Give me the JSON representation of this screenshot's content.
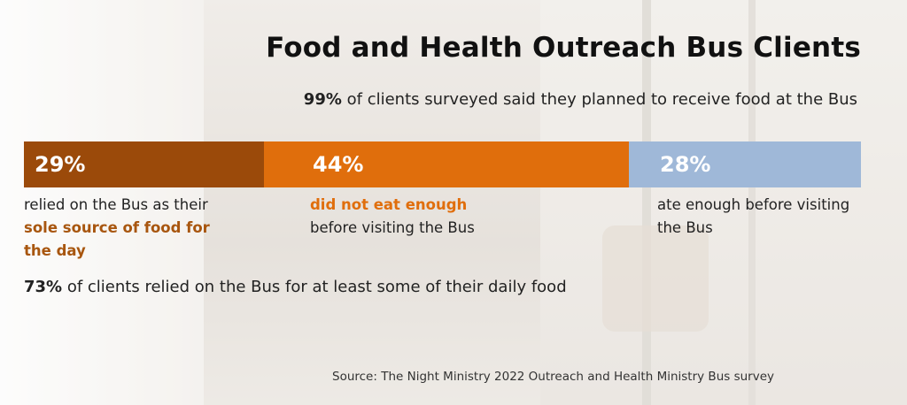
{
  "title": "Food and Health Outreach Bus Clients",
  "subtitle": {
    "value": "99%",
    "text": "of clients surveyed said they planned to receive food at the Bus"
  },
  "chart_data": {
    "type": "bar",
    "orientation": "horizontal-stacked",
    "categories": [
      "relied on the Bus as their sole source of food for the day",
      "did not eat enough before visiting the Bus",
      "ate enough before visiting the Bus"
    ],
    "values": [
      29,
      44,
      28
    ],
    "labels": [
      "29%",
      "44%",
      "28%"
    ],
    "colors": [
      "#9b4a0a",
      "#e06e0c",
      "#9fb8d8"
    ]
  },
  "segments": [
    {
      "label": "29%",
      "desc_plain": "relied on the Bus as their",
      "desc_highlight": "sole source of food for the day",
      "desc_after": "",
      "highlight_color": "#a8560f"
    },
    {
      "label": "44%",
      "desc_plain": "",
      "desc_highlight": "did not eat enough",
      "desc_after": "before visiting the Bus",
      "highlight_color": "#e06e0c"
    },
    {
      "label": "28%",
      "desc_plain": "ate enough before visiting the Bus",
      "desc_highlight": "",
      "desc_after": "",
      "highlight_color": "#222222"
    }
  ],
  "footnote": {
    "value": "73%",
    "text": "of clients relied on the Bus for at least some of their daily food"
  },
  "source": "Source: The Night Ministry 2022 Outreach and Health Ministry Bus survey"
}
